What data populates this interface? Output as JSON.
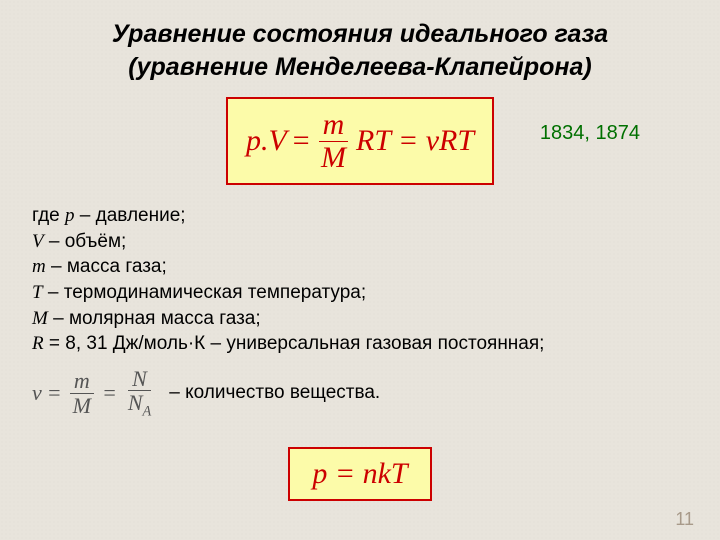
{
  "title_line1": "Уравнение состояния идеального газа",
  "title_line2": "(уравнение Менделеева-Клапейрона)",
  "years": "1834, 1874",
  "main_equation": {
    "lhs": "p.V",
    "eq1": " = ",
    "frac_num": "m",
    "frac_den": "M",
    "mid": " RT = νRT"
  },
  "defs": {
    "intro": "где ",
    "p": "p",
    "p_text": " – давление;",
    "V": "V",
    "V_text": " – объём;",
    "m": "m",
    "m_text": " – масса газа;",
    "T": "T",
    "T_text": " – термодинамическая температура;",
    "M": "M",
    "M_text": " – молярная масса газа;",
    "R": "R",
    "R_text": " = 8, 31 Дж/моль·К – универсальная газовая постоянная;"
  },
  "nu": {
    "sym": "ν",
    "eq": "=",
    "f1_num": "m",
    "f1_den": "M",
    "f2_num": "N",
    "f2_den_N": "N",
    "f2_den_sub": "A",
    "text": " – количество вещества."
  },
  "bottom": {
    "eq": "p = nkT"
  },
  "style": {
    "accent_red": "#cc0000",
    "eq_bg": "#fcfba9",
    "year_color": "#007000",
    "page_bg": "#e8e4dc"
  },
  "page_number": "11"
}
